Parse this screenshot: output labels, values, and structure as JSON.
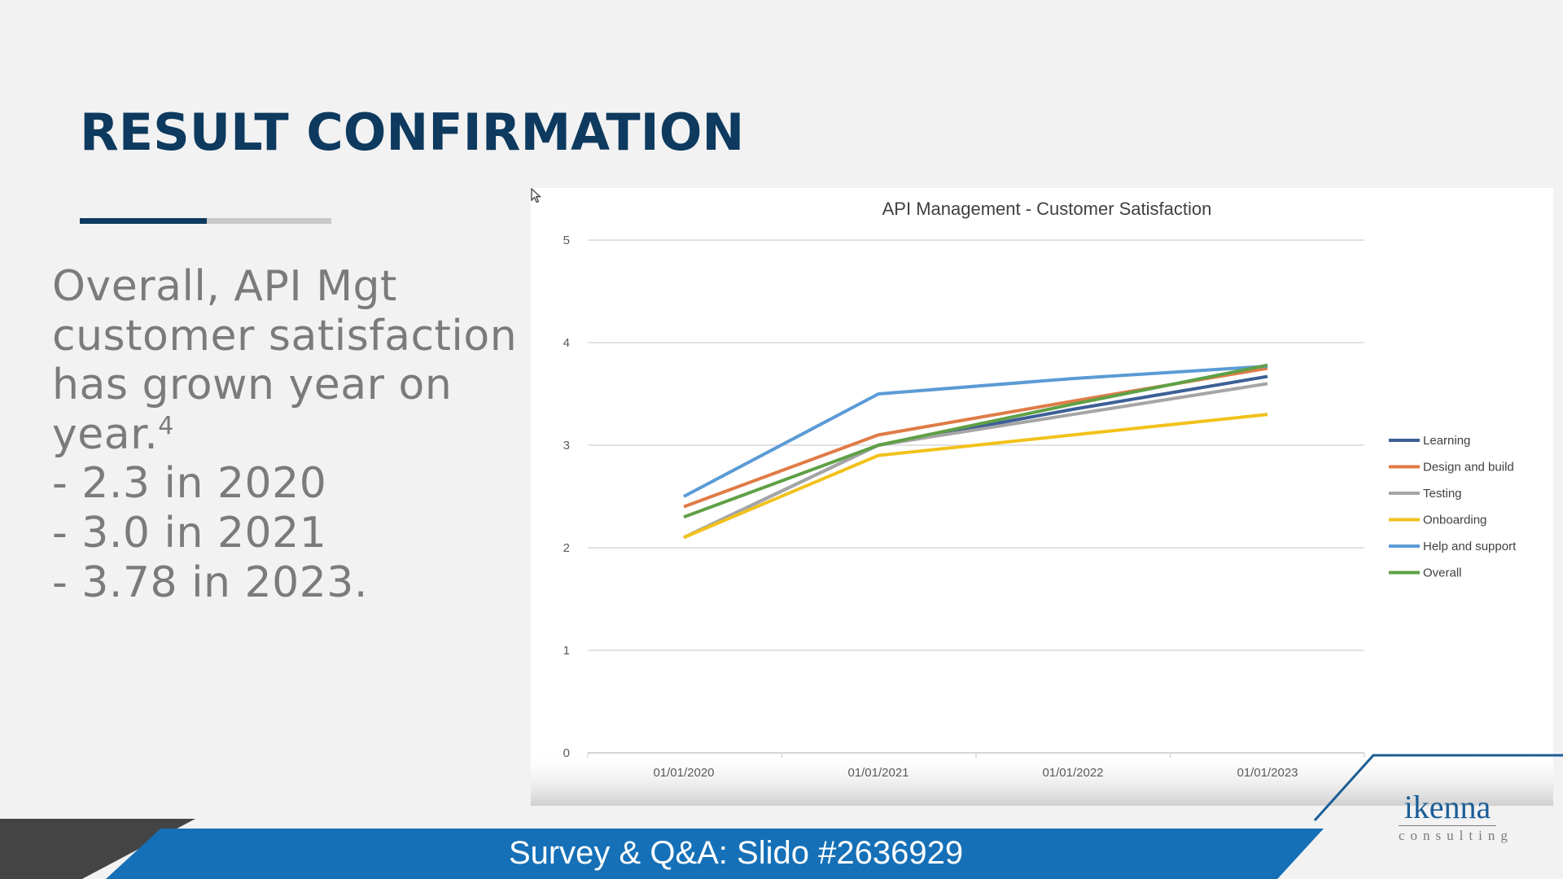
{
  "slide": {
    "title": "RESULT CONFIRMATION",
    "body_lines": [
      "Overall, API Mgt",
      "customer satisfaction",
      "has grown year on",
      "year.",
      "- 2.3 in 2020",
      "- 3.0 in 2021",
      "- 3.78 in 2023."
    ],
    "footnote_marker": "4",
    "banner_text": "Survey & Q&A: Slido #2636929",
    "logo": {
      "name": "ikenna",
      "sub": "consulting"
    }
  },
  "colors": {
    "title": "#0d3a5e",
    "body_text": "#7b7b7b",
    "banner": "#1570b7",
    "dark_accent": "#444444"
  },
  "chart_data": {
    "type": "line",
    "title": "API Management - Customer Satisfaction",
    "xlabel": "",
    "ylabel": "",
    "x": [
      "01/01/2020",
      "01/01/2021",
      "01/01/2022",
      "01/01/2023"
    ],
    "ylim": [
      0,
      5
    ],
    "yticks": [
      "0",
      "1",
      "2",
      "3",
      "4",
      "5"
    ],
    "grid": true,
    "legend_position": "right",
    "series": [
      {
        "name": "Learning",
        "color": "#3d5f97",
        "values": [
          2.1,
          3.0,
          3.35,
          3.67
        ]
      },
      {
        "name": "Design and build",
        "color": "#e07b46",
        "values": [
          2.4,
          3.1,
          3.43,
          3.75
        ]
      },
      {
        "name": "Testing",
        "color": "#a5a5a5",
        "values": [
          2.1,
          3.0,
          3.3,
          3.6
        ]
      },
      {
        "name": "Onboarding",
        "color": "#f2c21b",
        "values": [
          2.1,
          2.9,
          3.1,
          3.3
        ]
      },
      {
        "name": "Help and support",
        "color": "#5b9bd5",
        "values": [
          2.5,
          3.5,
          3.65,
          3.77
        ]
      },
      {
        "name": "Overall",
        "color": "#5fa046",
        "values": [
          2.3,
          3.0,
          3.4,
          3.78
        ]
      }
    ]
  }
}
